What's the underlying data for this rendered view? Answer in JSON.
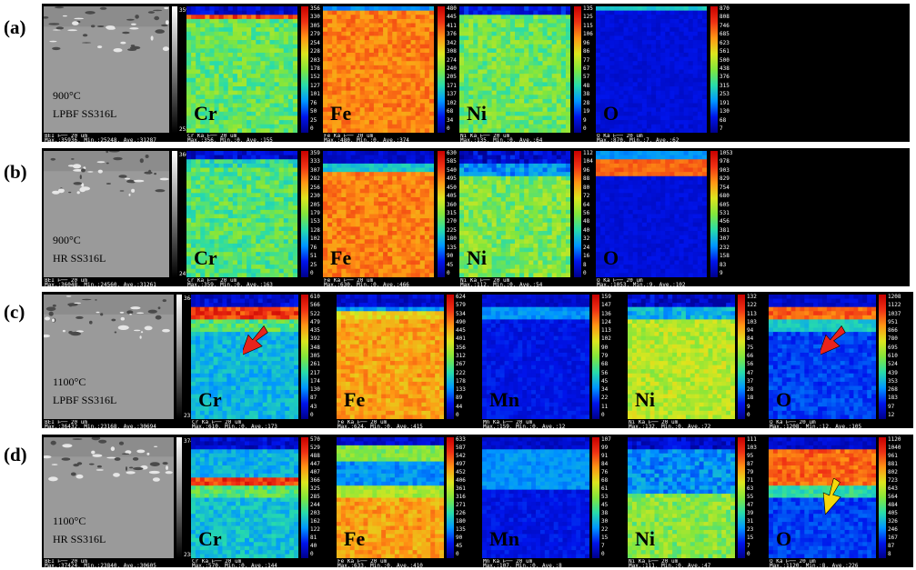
{
  "rows": [
    {
      "label": "(a)",
      "sem": {
        "line1": "900°C",
        "line2": "LPBF  SS316L",
        "gs_max": "35936",
        "gs_min": "25248",
        "caption": "BEI   ⊢── 20 um\nMax.:35936, Min.:25248, Ave.:31287"
      },
      "maps": [
        {
          "element": "Cr",
          "ticks": [
            "356",
            "330",
            "305",
            "279",
            "254",
            "228",
            "203",
            "178",
            "152",
            "127",
            "101",
            "76",
            "50",
            "25",
            "0"
          ],
          "caption": "Cr Ka  ⊢── 20 um\nMax.:356, Min.:0, Ave.:155"
        },
        {
          "element": "Fe",
          "ticks": [
            "480",
            "445",
            "411",
            "376",
            "342",
            "308",
            "274",
            "240",
            "205",
            "171",
            "137",
            "102",
            "68",
            "34",
            "0"
          ],
          "caption": "Fe Ka  ⊢── 20 um\nMax.:480, Min.:0, Ave.:374"
        },
        {
          "element": "Ni",
          "ticks": [
            "135",
            "125",
            "115",
            "106",
            "96",
            "86",
            "77",
            "67",
            "57",
            "48",
            "38",
            "28",
            "19",
            "9",
            "0"
          ],
          "caption": "Ni Ka  ⊢── 20 um\nMax.:135, Min.:0, Ave.:64"
        },
        {
          "element": "O",
          "ticks": [
            "870",
            "808",
            "746",
            "685",
            "623",
            "561",
            "500",
            "438",
            "376",
            "315",
            "253",
            "191",
            "130",
            "68",
            "7"
          ],
          "caption": "O Ka  ⊢── 20 um\nMax.:870, Min.:7, Ave.:62"
        }
      ]
    },
    {
      "label": "(b)",
      "sem": {
        "line1": "900°C",
        "line2": "HR  SS316L",
        "gs_max": "36048",
        "gs_min": "24560",
        "caption": "BEI   ⊢── 20 um\nMax.:36048, Min.:24560, Ave.:31261"
      },
      "maps": [
        {
          "element": "Cr",
          "ticks": [
            "359",
            "333",
            "307",
            "282",
            "256",
            "230",
            "205",
            "179",
            "153",
            "128",
            "102",
            "76",
            "51",
            "25",
            "0"
          ],
          "caption": "Cr Ka  ⊢── 20 um\nMax.:359, Min.:0, Ave.:163"
        },
        {
          "element": "Fe",
          "ticks": [
            "630",
            "585",
            "540",
            "495",
            "450",
            "405",
            "360",
            "315",
            "270",
            "225",
            "180",
            "135",
            "90",
            "45",
            "0"
          ],
          "caption": "Fe Ka  ⊢── 20 um\nMax.:630, Min.:0, Ave.:466"
        },
        {
          "element": "Ni",
          "ticks": [
            "112",
            "104",
            "96",
            "88",
            "80",
            "72",
            "64",
            "56",
            "48",
            "40",
            "32",
            "24",
            "16",
            "8",
            "0"
          ],
          "caption": "Ni Ka  ⊢── 20 um\nMax.:112, Min.:0, Ave.:54"
        },
        {
          "element": "O",
          "ticks": [
            "1053",
            "978",
            "903",
            "829",
            "754",
            "680",
            "605",
            "531",
            "456",
            "381",
            "307",
            "232",
            "158",
            "83",
            "9"
          ],
          "caption": "O Ka  ⊢── 20 um\nMax.:1053, Min.:9, Ave.:102"
        }
      ]
    },
    {
      "label": "(c)",
      "sem": {
        "line1": "1100°C",
        "line2": "LPBF  SS316L",
        "gs_max": "36432",
        "gs_min": "23168",
        "caption": "BEI   ⊢── 20 um\nMax.:36432, Min.:23168, Ave.:30694"
      },
      "maps": [
        {
          "element": "Cr",
          "ticks": [
            "610",
            "566",
            "522",
            "479",
            "435",
            "392",
            "348",
            "305",
            "261",
            "217",
            "174",
            "130",
            "87",
            "43",
            "0"
          ],
          "caption": "Cr Ka  ⊢── 20 um\nMax.:610, Min.:0, Ave.:173"
        },
        {
          "element": "Fe",
          "ticks": [
            "624",
            "579",
            "534",
            "490",
            "445",
            "401",
            "356",
            "312",
            "267",
            "222",
            "178",
            "133",
            "89",
            "44",
            "0"
          ],
          "caption": "Fe Ka  ⊢── 20 um\nMax.:624, Min.:0, Ave.:415"
        },
        {
          "element": "Mn",
          "ticks": [
            "159",
            "147",
            "136",
            "124",
            "113",
            "102",
            "90",
            "79",
            "68",
            "56",
            "45",
            "34",
            "22",
            "11",
            "0"
          ],
          "caption": "Mn Ka  ⊢── 20 um\nMax.:159, Min.:0, Ave.:12"
        },
        {
          "element": "Ni",
          "ticks": [
            "132",
            "122",
            "113",
            "103",
            "94",
            "84",
            "75",
            "66",
            "56",
            "47",
            "37",
            "28",
            "18",
            "9",
            "0"
          ],
          "caption": "Ni Ka  ⊢── 20 um\nMax.:132, Min.:0, Ave.:72"
        },
        {
          "element": "O",
          "ticks": [
            "1208",
            "1122",
            "1037",
            "951",
            "866",
            "780",
            "695",
            "610",
            "524",
            "439",
            "353",
            "268",
            "183",
            "97",
            "12"
          ],
          "caption": "O Ka  ⊢── 20 um\nMax.:1208, Min.:12, Ave.:105"
        }
      ]
    },
    {
      "label": "(d)",
      "sem": {
        "line1": "1100°C",
        "line2": "HR  SS316L",
        "gs_max": "37424",
        "gs_min": "23840",
        "caption": "BEI   ⊢── 20 um\nMax.:37424, Min.:23840, Ave.:30605"
      },
      "maps": [
        {
          "element": "Cr",
          "ticks": [
            "570",
            "529",
            "488",
            "447",
            "407",
            "366",
            "325",
            "285",
            "244",
            "203",
            "162",
            "122",
            "81",
            "40",
            "0"
          ],
          "caption": "Cr Ka  ⊢── 20 um\nMax.:570, Min.:0, Ave.:144"
        },
        {
          "element": "Fe",
          "ticks": [
            "633",
            "587",
            "542",
            "497",
            "452",
            "406",
            "361",
            "316",
            "271",
            "226",
            "180",
            "135",
            "90",
            "45",
            "0"
          ],
          "caption": "Fe Ka  ⊢── 20 um\nMax.:633, Min.:0, Ave.:410"
        },
        {
          "element": "Mn",
          "ticks": [
            "107",
            "99",
            "91",
            "84",
            "76",
            "68",
            "61",
            "53",
            "45",
            "38",
            "30",
            "22",
            "15",
            "7",
            "0"
          ],
          "caption": "Mn Ka  ⊢── 20 um\nMax.:107, Min.:0, Ave.:8"
        },
        {
          "element": "Ni",
          "ticks": [
            "111",
            "103",
            "95",
            "87",
            "79",
            "71",
            "63",
            "55",
            "47",
            "39",
            "31",
            "23",
            "15",
            "7",
            "0"
          ],
          "caption": "Ni Ka  ⊢── 20 um\nMax.:111, Min.:0, Ave.:47"
        },
        {
          "element": "O",
          "ticks": [
            "1120",
            "1040",
            "961",
            "881",
            "802",
            "723",
            "643",
            "564",
            "484",
            "405",
            "326",
            "246",
            "167",
            "87",
            "8"
          ],
          "caption": "O Ka  ⊢── 20 um\nMax.:1120, Min.:8, Ave.:226"
        }
      ]
    }
  ],
  "arrows": [
    {
      "row": 2,
      "map": 0,
      "color": "#e8231c"
    },
    {
      "row": 2,
      "map": 4,
      "color": "#e8231c"
    },
    {
      "row": 3,
      "map": 4,
      "color": "#f5d90a"
    }
  ]
}
